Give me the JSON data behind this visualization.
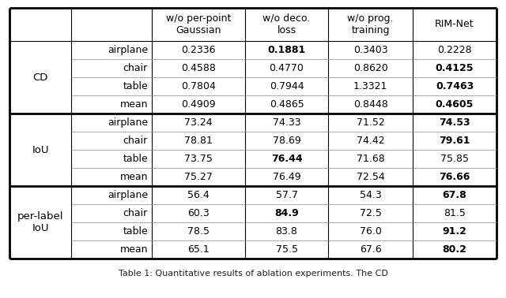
{
  "col_headers": [
    "w/o per-point\nGaussian",
    "w/o deco.\nloss",
    "w/o prog.\ntraining",
    "RIM-Net"
  ],
  "row_groups": [
    {
      "group_label": "CD",
      "rows": [
        {
          "label": "airplane",
          "vals": [
            "0.2336",
            "0.1881",
            "0.3403",
            "0.2228"
          ],
          "bold": [
            false,
            true,
            false,
            false
          ]
        },
        {
          "label": "chair",
          "vals": [
            "0.4588",
            "0.4770",
            "0.8620",
            "0.4125"
          ],
          "bold": [
            false,
            false,
            false,
            true
          ]
        },
        {
          "label": "table",
          "vals": [
            "0.7804",
            "0.7944",
            "1.3321",
            "0.7463"
          ],
          "bold": [
            false,
            false,
            false,
            true
          ]
        },
        {
          "label": "mean",
          "vals": [
            "0.4909",
            "0.4865",
            "0.8448",
            "0.4605"
          ],
          "bold": [
            false,
            false,
            false,
            true
          ]
        }
      ]
    },
    {
      "group_label": "IoU",
      "rows": [
        {
          "label": "airplane",
          "vals": [
            "73.24",
            "74.33",
            "71.52",
            "74.53"
          ],
          "bold": [
            false,
            false,
            false,
            true
          ]
        },
        {
          "label": "chair",
          "vals": [
            "78.81",
            "78.69",
            "74.42",
            "79.61"
          ],
          "bold": [
            false,
            false,
            false,
            true
          ]
        },
        {
          "label": "table",
          "vals": [
            "73.75",
            "76.44",
            "71.68",
            "75.85"
          ],
          "bold": [
            false,
            true,
            false,
            false
          ]
        },
        {
          "label": "mean",
          "vals": [
            "75.27",
            "76.49",
            "72.54",
            "76.66"
          ],
          "bold": [
            false,
            false,
            false,
            true
          ]
        }
      ]
    },
    {
      "group_label": "per-label\nIoU",
      "rows": [
        {
          "label": "airplane",
          "vals": [
            "56.4",
            "57.7",
            "54.3",
            "67.8"
          ],
          "bold": [
            false,
            false,
            false,
            true
          ]
        },
        {
          "label": "chair",
          "vals": [
            "60.3",
            "84.9",
            "72.5",
            "81.5"
          ],
          "bold": [
            false,
            true,
            false,
            false
          ]
        },
        {
          "label": "table",
          "vals": [
            "78.5",
            "83.8",
            "76.0",
            "91.2"
          ],
          "bold": [
            false,
            false,
            false,
            true
          ]
        },
        {
          "label": "mean",
          "vals": [
            "65.1",
            "75.5",
            "67.6",
            "80.2"
          ],
          "bold": [
            false,
            false,
            false,
            true
          ]
        }
      ]
    }
  ],
  "caption": "Table 1: Quantitative results of ablation experiments. The CD",
  "thick_lw": 2.0,
  "thin_lw": 0.8,
  "inner_lw": 0.5,
  "fontsize_header": 9.0,
  "fontsize_data": 9.0,
  "fontsize_group": 9.5,
  "fontsize_caption": 8.0
}
